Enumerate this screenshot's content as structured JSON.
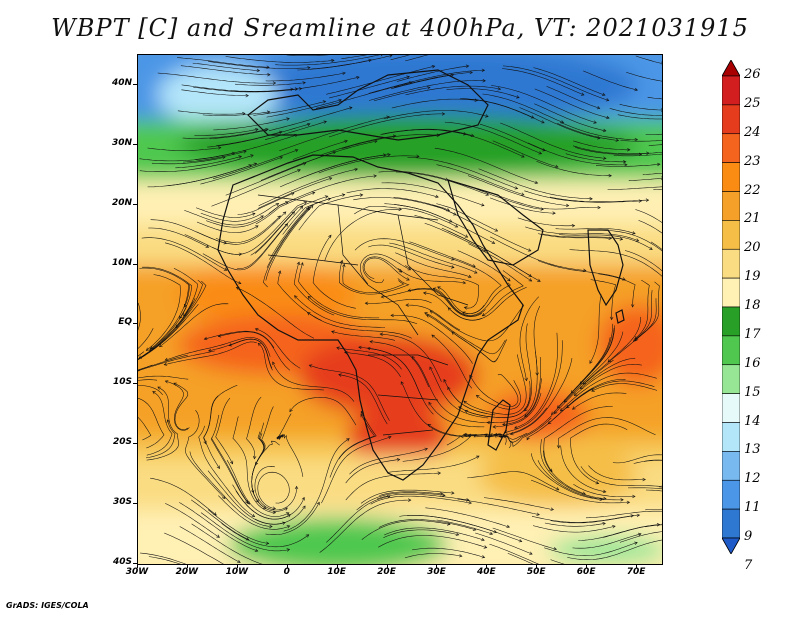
{
  "title": "WBPT [C] and Sreamline at 400hPa, VT: 2021031915",
  "footer": "GrADS: IGES/COLA",
  "map": {
    "lat_labels": [
      "40N",
      "30N",
      "20N",
      "10N",
      "EQ",
      "10S",
      "20S",
      "30S",
      "40S"
    ],
    "lon_labels": [
      "30W",
      "20W",
      "10W",
      "0",
      "10E",
      "20E",
      "30E",
      "40E",
      "50E",
      "60E",
      "70E"
    ],
    "lat_range": [
      -40,
      45
    ],
    "lon_range": [
      -30,
      75
    ]
  },
  "colorbar": {
    "labels": [
      "26",
      "25",
      "24",
      "23",
      "22",
      "21",
      "20",
      "19",
      "18",
      "17",
      "16",
      "15",
      "14",
      "13",
      "12",
      "11",
      "9",
      "7"
    ],
    "colors": [
      "#a80000",
      "#d21e1e",
      "#e63c1e",
      "#f5641e",
      "#fa8c14",
      "#f5a028",
      "#f5be46",
      "#fadc82",
      "#fff0b4",
      "#28a028",
      "#50c850",
      "#96e696",
      "#e6fafa",
      "#b4e6fa",
      "#78b9f0",
      "#4b96e6",
      "#2e78d2",
      "#1e5ac8"
    ]
  }
}
